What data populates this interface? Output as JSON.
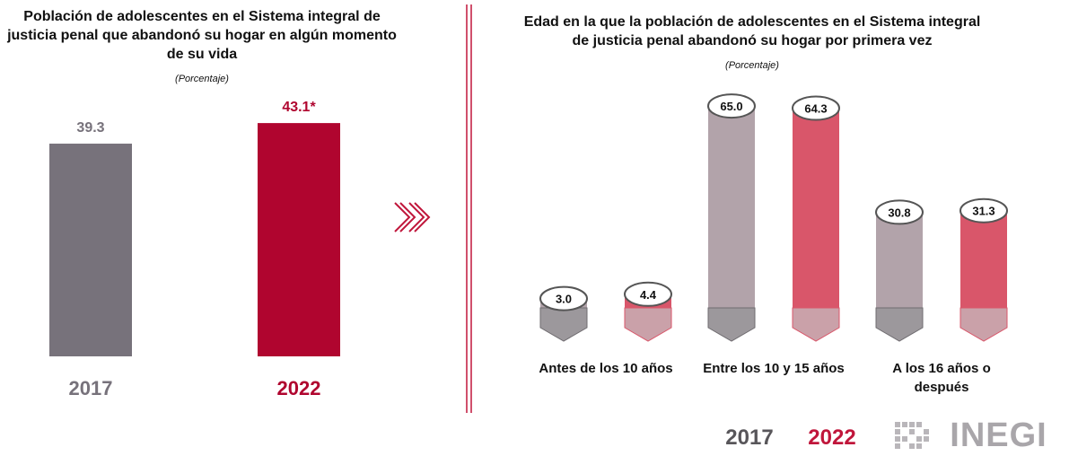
{
  "chart_data": [
    {
      "type": "bar",
      "title": "Población de adolescentes en el Sistema integral de justicia penal que abandonó su hogar en algún momento de su vida",
      "subtitle": "(Porcentaje)",
      "categories": [
        "2017",
        "2022"
      ],
      "values": [
        39.3,
        43.1
      ],
      "value_labels": [
        "39.3",
        "43.1*"
      ],
      "colors": [
        "#77727b",
        "#b0052f"
      ]
    },
    {
      "type": "cylinder",
      "title": "Edad en la que la población de adolescentes en el Sistema integral de justicia penal abandonó su hogar por primera vez",
      "subtitle": "(Porcentaje)",
      "categories": [
        "Antes de los 10 años",
        "Entre los 10 y 15 años",
        "A los 16 años o después"
      ],
      "series": [
        {
          "name": "2017",
          "color": "#b2a3aa",
          "values": [
            3.0,
            65.0,
            30.8
          ],
          "value_labels": [
            "3.0",
            "65.0",
            "30.8"
          ]
        },
        {
          "name": "2022",
          "color": "#d9566a",
          "values": [
            4.4,
            64.3,
            31.3
          ],
          "value_labels": [
            "4.4",
            "64.3",
            "31.3"
          ]
        }
      ],
      "legend_colors": [
        "#58565a",
        "#c0163b"
      ]
    }
  ],
  "logo": "INEGI"
}
